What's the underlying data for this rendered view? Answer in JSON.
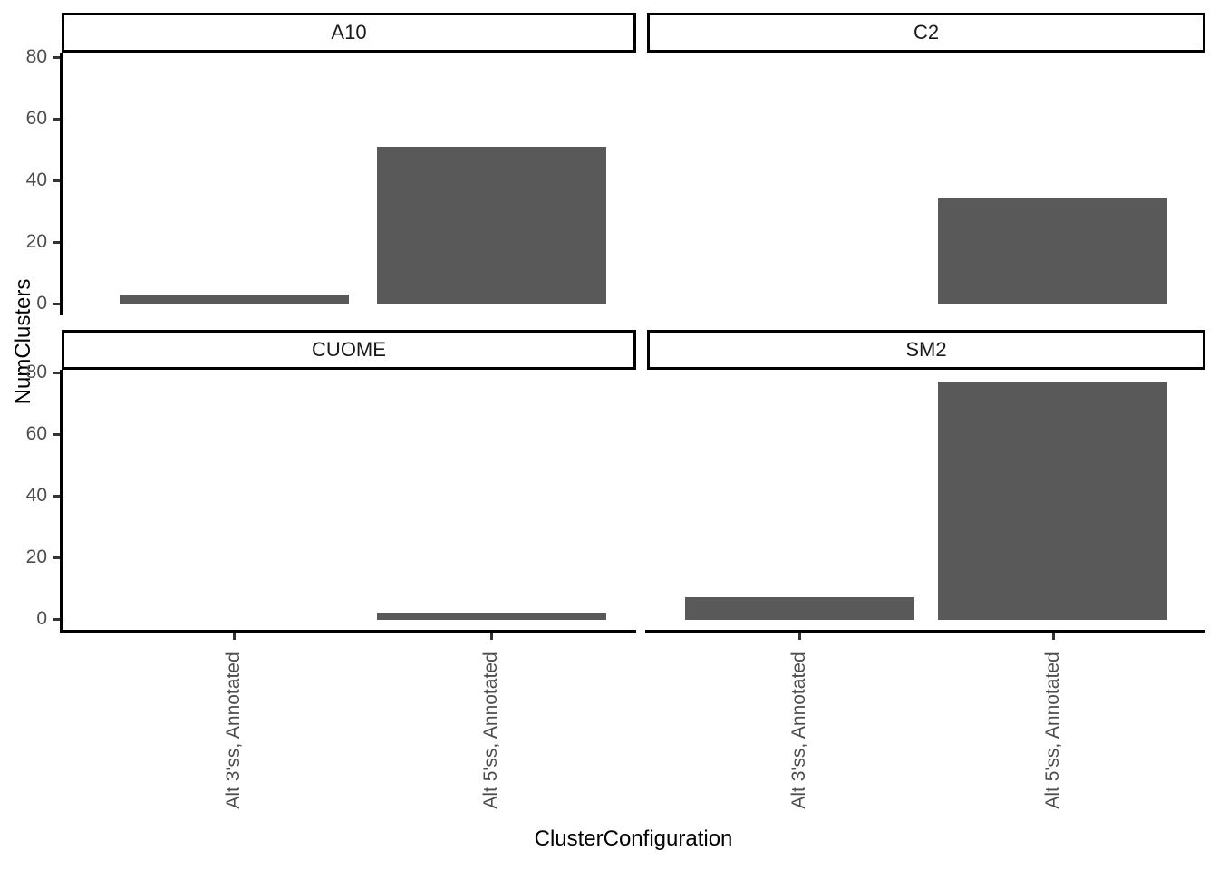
{
  "chart_data": {
    "type": "bar",
    "title": "",
    "xlabel": "ClusterConfiguration",
    "ylabel": "NumClusters",
    "categories": [
      "Alt 3'ss, Annotated",
      "Alt 5'ss, Annotated"
    ],
    "facets": [
      {
        "label": "A10",
        "values": [
          3,
          51
        ]
      },
      {
        "label": "C2",
        "values": [
          0,
          34
        ]
      },
      {
        "label": "CUOME",
        "values": [
          0,
          2
        ]
      },
      {
        "label": "SM2",
        "values": [
          7,
          77
        ]
      }
    ],
    "y_ticks": [
      0,
      20,
      40,
      60,
      80
    ],
    "ylim": [
      0,
      85
    ],
    "grid": "off",
    "legend": "none",
    "bar_color": "#595959",
    "axis_text_color": "#4D4D4D",
    "axis_line_color": "#000000",
    "strip_border_color": "#000000",
    "strip_background": "#ffffff"
  }
}
